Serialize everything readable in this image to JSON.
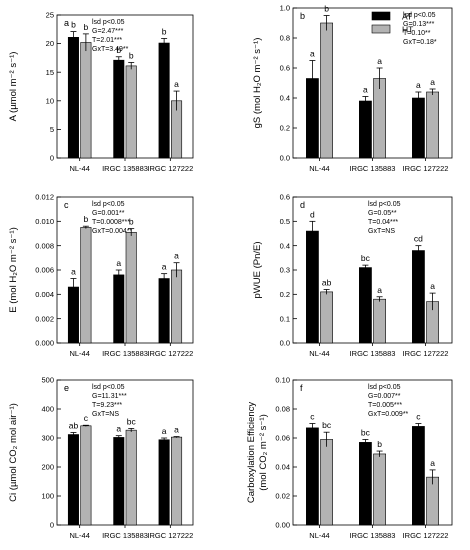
{
  "legend": {
    "items": [
      {
        "label": "AT",
        "color": "#000000"
      },
      {
        "label": "HT",
        "color": "#b3b3b3"
      }
    ]
  },
  "chart_data": [
    {
      "type": "bar",
      "panel": "a",
      "ylabel": "A (µmol m⁻² s⁻¹)",
      "categories": [
        "NL-44",
        "IRGC 135883",
        "IRGC 127222"
      ],
      "ylim": [
        0,
        25
      ],
      "yticks": [
        "0",
        "5",
        "10",
        "15",
        "20",
        "25"
      ],
      "series": [
        {
          "name": "AT",
          "color": "#000000",
          "values": [
            21.1,
            17.1,
            20.1
          ],
          "errors": [
            1.0,
            0.6,
            0.8
          ],
          "letters": [
            "b",
            "b",
            "b"
          ]
        },
        {
          "name": "HT",
          "color": "#b3b3b3",
          "values": [
            20.2,
            16.1,
            10.0
          ],
          "errors": [
            1.5,
            0.6,
            1.7
          ],
          "letters": [
            "b",
            "b",
            "a"
          ]
        }
      ],
      "stats": [
        "lsd p<0.05",
        "G=2.47***",
        "T=2.01***",
        "GxT=3.49**"
      ]
    },
    {
      "type": "bar",
      "panel": "b",
      "ylabel": "gS (mol H₂O m⁻² s⁻¹)",
      "categories": [
        "NL-44",
        "IRGC 135883",
        "IRGC 127222"
      ],
      "ylim": [
        0,
        1.0
      ],
      "yticks": [
        "0.0",
        "0.2",
        "0.4",
        "0.6",
        "0.8",
        "1.0"
      ],
      "series": [
        {
          "name": "AT",
          "color": "#000000",
          "values": [
            0.53,
            0.38,
            0.4
          ],
          "errors": [
            0.12,
            0.03,
            0.04
          ],
          "letters": [
            "a",
            "a",
            "a"
          ]
        },
        {
          "name": "HT",
          "color": "#b3b3b3",
          "values": [
            0.9,
            0.53,
            0.44
          ],
          "errors": [
            0.05,
            0.07,
            0.02
          ],
          "letters": [
            "b",
            "a",
            "a"
          ]
        }
      ],
      "stats": [
        "lsd p<0.05",
        "G=0.13***",
        "T=0.10**",
        "GxT=0.18*"
      ]
    },
    {
      "type": "bar",
      "panel": "c",
      "ylabel": "E (mol H₂O m⁻² s⁻¹)",
      "categories": [
        "NL-44",
        "IRGC 135883",
        "IRGC 127222"
      ],
      "ylim": [
        0,
        0.012
      ],
      "yticks": [
        "0.000",
        "0.002",
        "0.004",
        "0.006",
        "0.008",
        "0.010",
        "0.012"
      ],
      "series": [
        {
          "name": "AT",
          "color": "#000000",
          "values": [
            0.0046,
            0.0056,
            0.0053
          ],
          "errors": [
            0.0007,
            0.0004,
            0.0004
          ],
          "letters": [
            "a",
            "a",
            "a"
          ]
        },
        {
          "name": "HT",
          "color": "#b3b3b3",
          "values": [
            0.0095,
            0.0091,
            0.006
          ],
          "errors": [
            0.0001,
            0.0003,
            0.0006
          ],
          "letters": [
            "b",
            "b",
            "a"
          ]
        }
      ],
      "stats": [
        "lsd p<0.05",
        "G=0.001**",
        "T=0.0008***",
        "GxT=0.004**"
      ]
    },
    {
      "type": "bar",
      "panel": "d",
      "ylabel": "pWUE (Pn/E)",
      "categories": [
        "NL-44",
        "IRGC 135883",
        "IRGC 127222"
      ],
      "ylim": [
        0,
        0.6
      ],
      "yticks": [
        "0.0",
        "0.1",
        "0.2",
        "0.3",
        "0.4",
        "0.5",
        "0.6"
      ],
      "series": [
        {
          "name": "AT",
          "color": "#000000",
          "values": [
            0.46,
            0.31,
            0.38
          ],
          "errors": [
            0.04,
            0.01,
            0.02
          ],
          "letters": [
            "d",
            "bc",
            "cd"
          ]
        },
        {
          "name": "HT",
          "color": "#b3b3b3",
          "values": [
            0.21,
            0.18,
            0.17
          ],
          "errors": [
            0.01,
            0.01,
            0.035
          ],
          "letters": [
            "ab",
            "a",
            "a"
          ]
        }
      ],
      "stats": [
        "lsd p<0.05",
        "G=0.05**",
        "T=0.04***",
        "GxT=NS"
      ]
    },
    {
      "type": "bar",
      "panel": "e",
      "ylabel": "Ci (µmol CO₂ mol air⁻¹)",
      "categories": [
        "NL-44",
        "IRGC 135883",
        "IRGC 127222"
      ],
      "ylim": [
        0,
        500
      ],
      "yticks": [
        "0",
        "100",
        "200",
        "300",
        "400",
        "500"
      ],
      "series": [
        {
          "name": "AT",
          "color": "#000000",
          "values": [
            312,
            302,
            294
          ],
          "errors": [
            7,
            6,
            6
          ],
          "letters": [
            "ab",
            "a",
            "a"
          ]
        },
        {
          "name": "HT",
          "color": "#b3b3b3",
          "values": [
            342,
            327,
            303
          ],
          "errors": [
            2,
            6,
            2
          ],
          "letters": [
            "c",
            "bc",
            "a"
          ]
        }
      ],
      "stats": [
        "lsd p<0.05",
        "G=11.31***",
        "T=9.23***",
        "GxT=NS"
      ]
    },
    {
      "type": "bar",
      "panel": "f",
      "ylabel": "Carboxylation Efficiency (mol CO₂ m⁻² s⁻¹)",
      "ylabel_lines": [
        "Carboxylation Efficiency",
        "(mol CO₂ m⁻² s⁻¹)"
      ],
      "categories": [
        "NL-44",
        "IRGC 135883",
        "IRGC 127222"
      ],
      "ylim": [
        0,
        0.1
      ],
      "yticks": [
        "0.00",
        "0.02",
        "0.04",
        "0.06",
        "0.08",
        "0.10"
      ],
      "series": [
        {
          "name": "AT",
          "color": "#000000",
          "values": [
            0.067,
            0.057,
            0.068
          ],
          "errors": [
            0.003,
            0.002,
            0.002
          ],
          "letters": [
            "c",
            "bc",
            "c"
          ]
        },
        {
          "name": "HT",
          "color": "#b3b3b3",
          "values": [
            0.059,
            0.049,
            0.033
          ],
          "errors": [
            0.005,
            0.002,
            0.005
          ],
          "letters": [
            "bc",
            "b",
            "a"
          ]
        }
      ],
      "stats": [
        "lsd p<0.05",
        "G=0.007**",
        "T=0.005***",
        "GxT=0.009**"
      ]
    }
  ]
}
